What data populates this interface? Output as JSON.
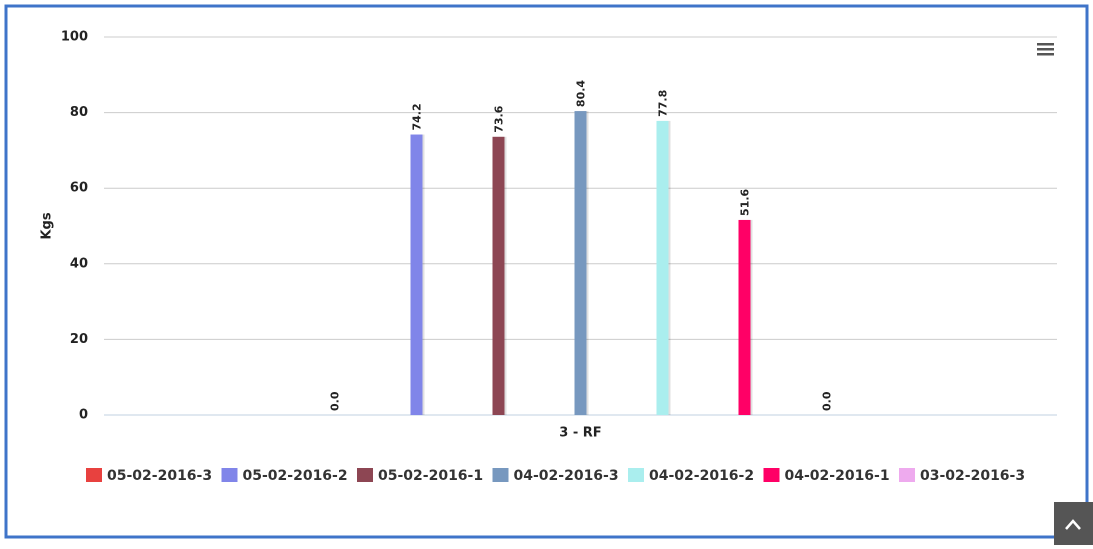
{
  "chart_data": {
    "type": "bar",
    "y_label": "Kgs",
    "categories": [
      "3 - RF"
    ],
    "ylim": [
      0,
      100
    ],
    "yticks": [
      0,
      20,
      40,
      60,
      80,
      100
    ],
    "grid": true,
    "legend": "bottom",
    "series": [
      {
        "name": "05-02-2016-3",
        "color": "#e8413f",
        "values": [
          0
        ],
        "value_labels": [
          "0.0"
        ]
      },
      {
        "name": "05-02-2016-2",
        "color": "#8085e9",
        "values": [
          74.2
        ]
      },
      {
        "name": "05-02-2016-1",
        "color": "#8d4653",
        "values": [
          73.6
        ]
      },
      {
        "name": "04-02-2016-3",
        "color": "#7798bf",
        "values": [
          80.4
        ]
      },
      {
        "name": "04-02-2016-2",
        "color": "#aaeeee",
        "values": [
          77.8
        ]
      },
      {
        "name": "04-02-2016-1",
        "color": "#ff0066",
        "values": [
          51.6
        ]
      },
      {
        "name": "03-02-2016-3",
        "color": "#eeaaee",
        "values": [
          0
        ],
        "value_labels": [
          "0.0"
        ]
      }
    ]
  }
}
